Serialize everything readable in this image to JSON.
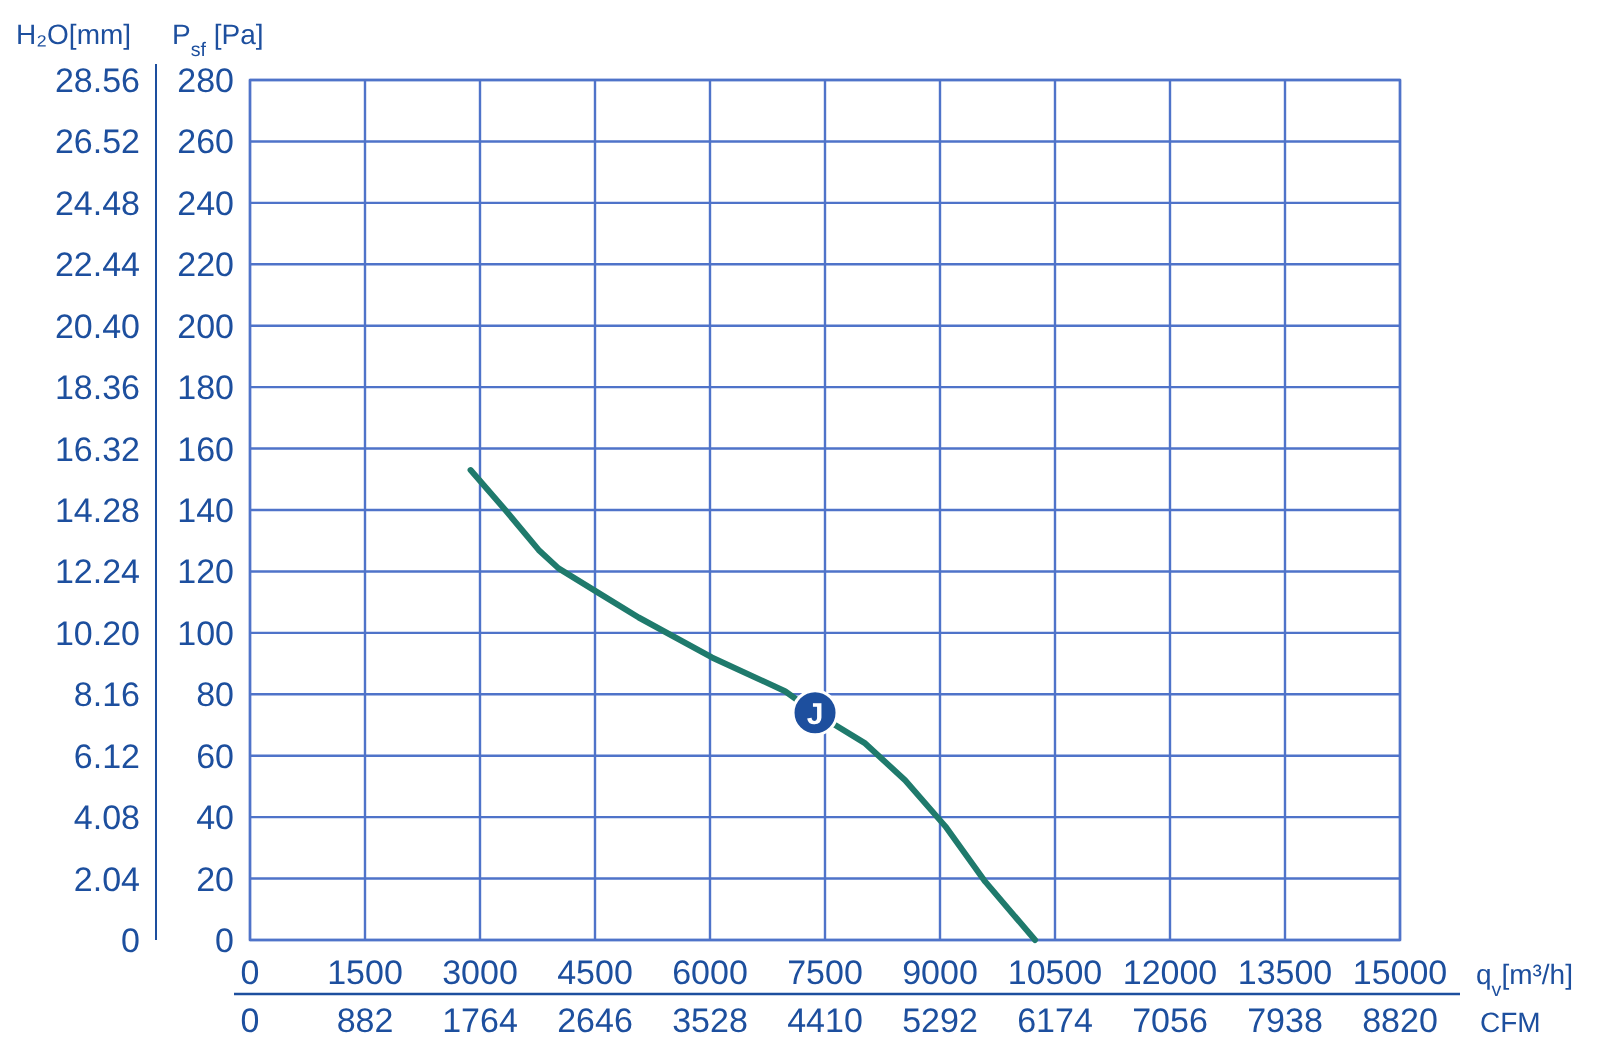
{
  "chart_data": {
    "type": "line",
    "xlabel": "q$_{v}$[m³/h]",
    "x2label": "CFM",
    "ylabel": "P$_{sf}$ [Pa]",
    "y2label": "H₂O[mm]",
    "x": [
      2877,
      3330,
      3765,
      4025,
      4545,
      5070,
      6025,
      6980,
      7370,
      8025,
      8545,
      9070,
      9590,
      10240
    ],
    "series": [
      {
        "color": "#1f7a6c",
        "values": [
          153,
          140,
          127,
          121,
          113,
          105,
          92,
          81,
          74,
          64,
          52,
          37,
          19,
          0
        ]
      }
    ],
    "xlim": [
      0,
      15000
    ],
    "xticks": [
      0,
      1500,
      3000,
      4500,
      6000,
      7500,
      9000,
      10500,
      12000,
      13500,
      15000
    ],
    "x2lim": [
      0,
      8820
    ],
    "x2ticks": [
      0,
      882,
      1764,
      2646,
      3528,
      4410,
      5292,
      6174,
      7056,
      7938,
      8820
    ],
    "ylim": [
      0,
      280
    ],
    "yticks": [
      0,
      20,
      40,
      60,
      80,
      100,
      120,
      140,
      160,
      180,
      200,
      220,
      240,
      260,
      280
    ],
    "y2lim": [
      0,
      28.56
    ],
    "y2ticks": [
      0,
      {
        "value": 2.04,
        "label": "2.04"
      },
      {
        "value": 4.08,
        "label": "4.08"
      },
      {
        "value": 6.12,
        "label": "6.12"
      },
      {
        "value": 8.16,
        "label": "8.16"
      },
      {
        "value": 10.2,
        "label": "10.20"
      },
      {
        "value": 12.24,
        "label": "12.24"
      },
      {
        "value": 14.28,
        "label": "14.28"
      },
      {
        "value": 16.32,
        "label": "16.32"
      },
      {
        "value": 18.36,
        "label": "18.36"
      },
      {
        "value": 20.4,
        "label": "20.40"
      },
      {
        "value": 22.44,
        "label": "22.44"
      },
      {
        "value": 24.48,
        "label": "24.48"
      },
      {
        "value": 26.52,
        "label": "26.52"
      },
      {
        "value": 28.56,
        "label": "28.56"
      }
    ],
    "grid": true,
    "marker": "none",
    "line_style": "solid",
    "annotations": [
      {
        "text": "J",
        "x": 7370,
        "y": 74
      }
    ]
  }
}
